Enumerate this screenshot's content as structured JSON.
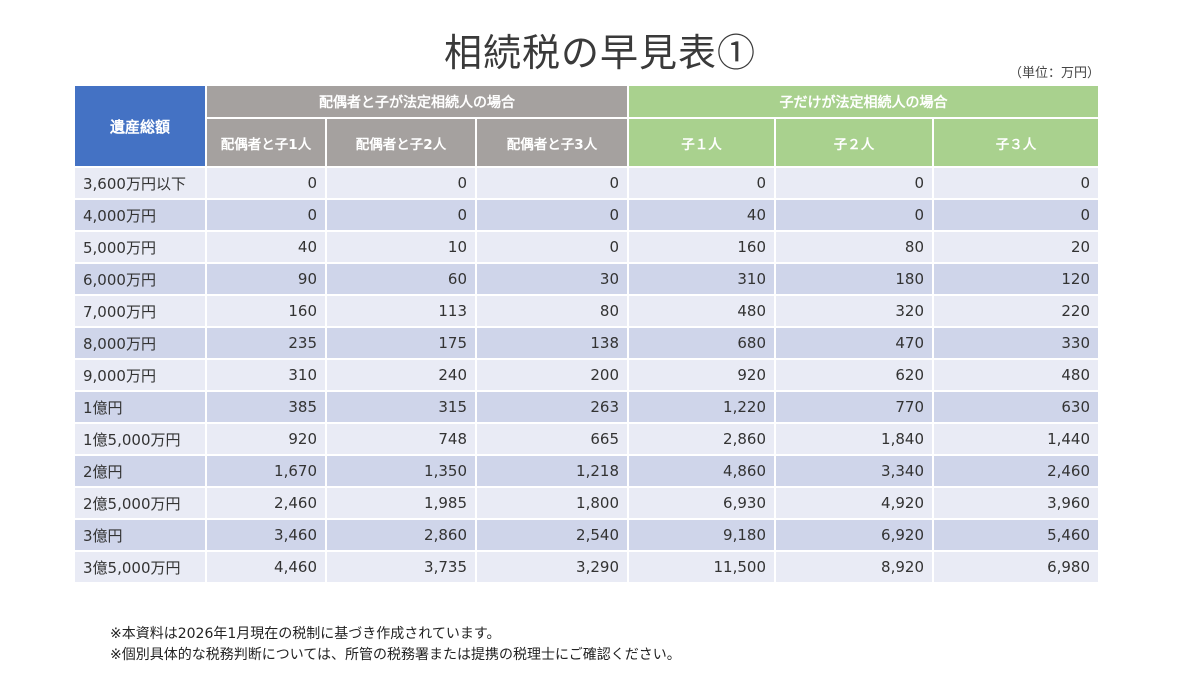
{
  "title": "相続税の早見表①",
  "unit_label": "（単位：万円）",
  "table": {
    "corner_header": "遺産総額",
    "group_headers": {
      "spouse": "配偶者と子が法定相続人の場合",
      "children": "子だけが法定相続人の場合"
    },
    "sub_headers": [
      "配偶者と子1人",
      "配偶者と子2人",
      "配偶者と子3人",
      "子１人",
      "子２人",
      "子３人"
    ],
    "rows": [
      {
        "label": "3,600万円以下",
        "values": [
          "0",
          "0",
          "0",
          "0",
          "0",
          "0"
        ]
      },
      {
        "label": "4,000万円",
        "values": [
          "0",
          "0",
          "0",
          "40",
          "0",
          "0"
        ]
      },
      {
        "label": "5,000万円",
        "values": [
          "40",
          "10",
          "0",
          "160",
          "80",
          "20"
        ]
      },
      {
        "label": "6,000万円",
        "values": [
          "90",
          "60",
          "30",
          "310",
          "180",
          "120"
        ]
      },
      {
        "label": "7,000万円",
        "values": [
          "160",
          "113",
          "80",
          "480",
          "320",
          "220"
        ]
      },
      {
        "label": "8,000万円",
        "values": [
          "235",
          "175",
          "138",
          "680",
          "470",
          "330"
        ]
      },
      {
        "label": "9,000万円",
        "values": [
          "310",
          "240",
          "200",
          "920",
          "620",
          "480"
        ]
      },
      {
        "label": "1億円",
        "values": [
          "385",
          "315",
          "263",
          "1,220",
          "770",
          "630"
        ]
      },
      {
        "label": "1億5,000万円",
        "values": [
          "920",
          "748",
          "665",
          "2,860",
          "1,840",
          "1,440"
        ]
      },
      {
        "label": "2億円",
        "values": [
          "1,670",
          "1,350",
          "1,218",
          "4,860",
          "3,340",
          "2,460"
        ]
      },
      {
        "label": "2億5,000万円",
        "values": [
          "2,460",
          "1,985",
          "1,800",
          "6,930",
          "4,920",
          "3,960"
        ]
      },
      {
        "label": "3億円",
        "values": [
          "3,460",
          "2,860",
          "2,540",
          "9,180",
          "6,920",
          "5,460"
        ]
      },
      {
        "label": "3億5,000万円",
        "values": [
          "4,460",
          "3,735",
          "3,290",
          "11,500",
          "8,920",
          "6,980"
        ]
      }
    ]
  },
  "notes": [
    "※本資料は2026年1月現在の税制に基づき作成されています。",
    "※個別具体的な税務判断については、所管の税務署または提携の税理士にご確認ください。"
  ],
  "colors": {
    "corner_header": "#4472c4",
    "spouse_header": "#a5a19f",
    "children_header": "#a9d18e",
    "row_light": "#e9ebf5",
    "row_dark": "#cfd5ea"
  }
}
